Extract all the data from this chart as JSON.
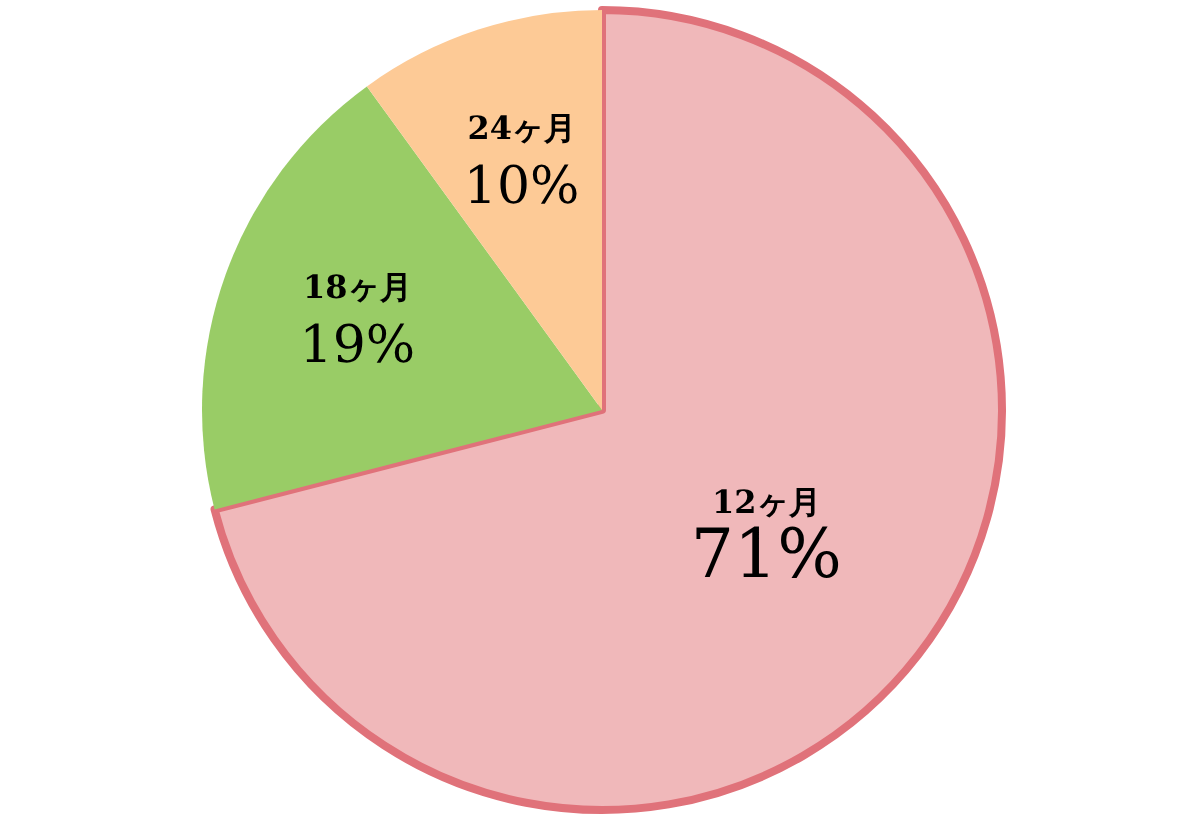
{
  "chart_data": {
    "type": "pie",
    "categories": [
      "12ヶ月",
      "18ヶ月",
      "24ヶ月"
    ],
    "values": [
      71,
      19,
      10
    ],
    "colors": [
      "#f0b8ba",
      "#99cc66",
      "#fdca96"
    ],
    "value_labels": [
      "71%",
      "19%",
      "10%"
    ],
    "legend": false
  }
}
